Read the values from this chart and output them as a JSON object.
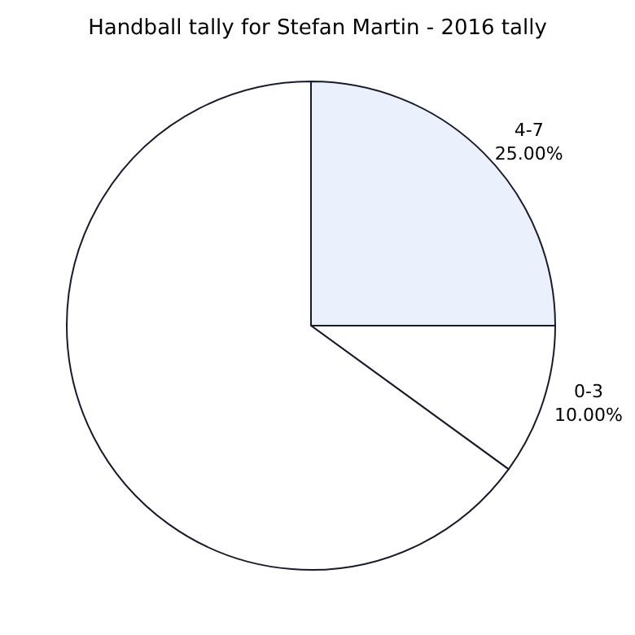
{
  "chart_data": {
    "type": "pie",
    "title": "Handball tally for Stefan Martin - 2016 tally",
    "categories": [
      "0-3",
      "4-7",
      null
    ],
    "values": [
      10,
      25,
      65
    ],
    "value_labels": [
      "10.00%",
      "25.00%",
      null
    ],
    "colors": [
      "#ffffff",
      "#eaf0fc",
      "#ffffff"
    ],
    "legend": false
  }
}
